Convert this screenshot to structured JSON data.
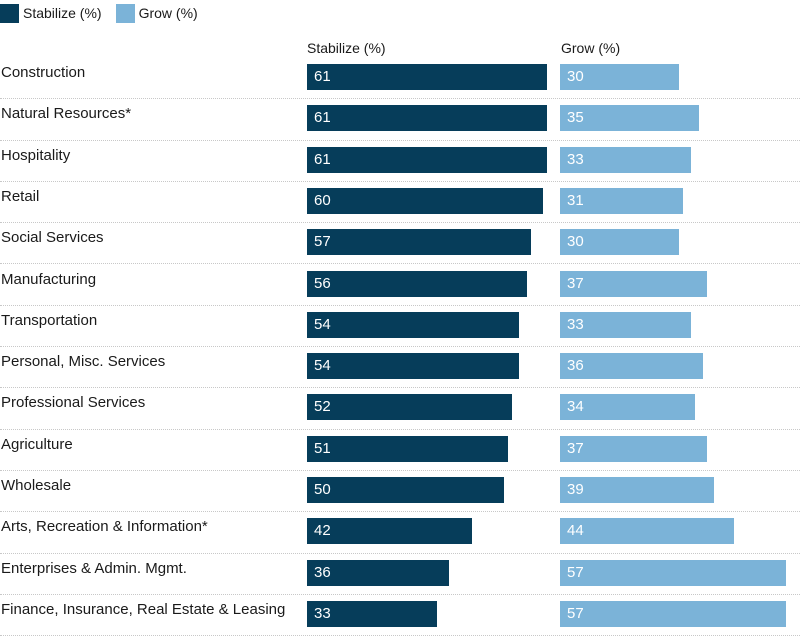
{
  "colors": {
    "stabilize": "#063d5a",
    "grow": "#7bb3d8"
  },
  "legend": [
    {
      "key": "stabilize",
      "label": "Stabilize (%)"
    },
    {
      "key": "grow",
      "label": "Grow (%)"
    }
  ],
  "chart_data": {
    "type": "bar",
    "orientation": "horizontal",
    "title": "",
    "legend_position": "top-left",
    "grid": false,
    "columns": [
      "Stabilize (%)",
      "Grow (%)"
    ],
    "categories": [
      "Construction",
      "Natural Resources*",
      "Hospitality",
      "Retail",
      "Social Services",
      "Manufacturing",
      "Transportation",
      "Personal, Misc. Services",
      "Professional Services",
      "Agriculture",
      "Wholesale",
      "Arts, Recreation & Information*",
      "Enterprises & Admin. Mgmt.",
      "Finance, Insurance, Real Estate & Leasing"
    ],
    "series": [
      {
        "name": "Stabilize (%)",
        "values": [
          61,
          61,
          61,
          60,
          57,
          56,
          54,
          54,
          52,
          51,
          50,
          42,
          36,
          33
        ]
      },
      {
        "name": "Grow (%)",
        "values": [
          30,
          35,
          33,
          31,
          30,
          37,
          33,
          36,
          34,
          37,
          39,
          44,
          57,
          57
        ]
      }
    ],
    "xlim": [
      0,
      61
    ]
  }
}
